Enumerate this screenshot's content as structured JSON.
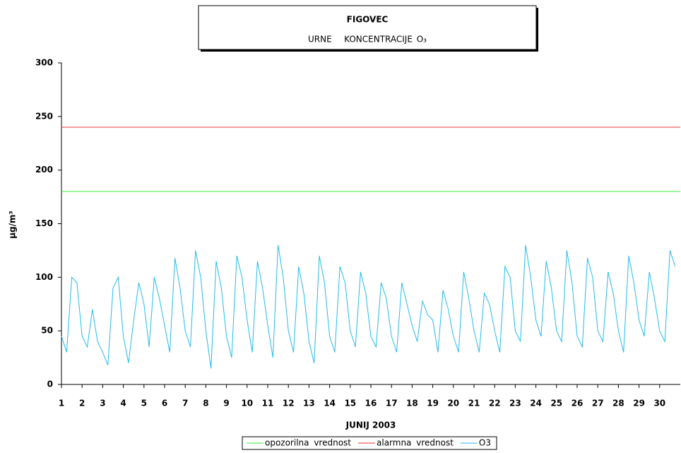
{
  "chart_data": {
    "type": "line",
    "title": "FIGOVEC",
    "subtitle": "URNE   KONCENTRACIJE O₃",
    "y_label": "µg/m³",
    "x_label": "JUNIJ 2003",
    "xlim": [
      1,
      31
    ],
    "xticks": [
      1,
      2,
      3,
      4,
      5,
      6,
      7,
      8,
      9,
      10,
      11,
      12,
      13,
      14,
      15,
      16,
      17,
      18,
      19,
      20,
      21,
      22,
      23,
      24,
      25,
      26,
      27,
      28,
      29,
      30
    ],
    "ylim": [
      0,
      300
    ],
    "yticks": [
      0,
      50,
      100,
      150,
      200,
      250,
      300
    ],
    "series": [
      {
        "name": "opozorilna vrednost",
        "color": "#33ee33",
        "x": [
          1,
          31
        ],
        "values": [
          180,
          180
        ]
      },
      {
        "name": "alarmna vrednost",
        "color": "#ee3333",
        "x": [
          1,
          31
        ],
        "values": [
          240,
          240
        ]
      },
      {
        "name": "O3",
        "color": "#22bbee",
        "x": [
          1,
          1.25,
          1.5,
          1.75,
          2,
          2.25,
          2.5,
          2.75,
          3,
          3.25,
          3.5,
          3.75,
          4,
          4.25,
          4.5,
          4.75,
          5,
          5.25,
          5.5,
          5.75,
          6,
          6.25,
          6.5,
          6.75,
          7,
          7.25,
          7.5,
          7.75,
          8,
          8.25,
          8.5,
          8.75,
          9,
          9.25,
          9.5,
          9.75,
          10,
          10.25,
          10.5,
          10.75,
          11,
          11.25,
          11.5,
          11.75,
          12,
          12.25,
          12.5,
          12.75,
          13,
          13.25,
          13.5,
          13.75,
          14,
          14.25,
          14.5,
          14.75,
          15,
          15.25,
          15.5,
          15.75,
          16,
          16.25,
          16.5,
          16.75,
          17,
          17.25,
          17.5,
          17.75,
          18,
          18.25,
          18.5,
          18.75,
          19,
          19.25,
          19.5,
          19.75,
          20,
          20.25,
          20.5,
          20.75,
          21,
          21.25,
          21.5,
          21.75,
          22,
          22.25,
          22.5,
          22.75,
          23,
          23.25,
          23.5,
          23.75,
          24,
          24.25,
          24.5,
          24.75,
          25,
          25.25,
          25.5,
          25.75,
          26,
          26.25,
          26.5,
          26.75,
          27,
          27.25,
          27.5,
          27.75,
          28,
          28.25,
          28.5,
          28.75,
          29,
          29.25,
          29.5,
          29.75,
          30,
          30.25,
          30.5,
          30.75
        ],
        "values": [
          45,
          30,
          100,
          95,
          45,
          35,
          70,
          40,
          30,
          18,
          90,
          100,
          45,
          20,
          60,
          95,
          75,
          35,
          100,
          80,
          55,
          30,
          118,
          90,
          50,
          35,
          125,
          100,
          50,
          15,
          115,
          90,
          45,
          25,
          120,
          100,
          60,
          30,
          115,
          90,
          55,
          25,
          130,
          100,
          50,
          30,
          110,
          85,
          40,
          20,
          120,
          95,
          45,
          30,
          110,
          95,
          50,
          35,
          105,
          85,
          45,
          35,
          95,
          80,
          45,
          30,
          95,
          75,
          55,
          40,
          78,
          65,
          60,
          30,
          88,
          70,
          45,
          30,
          105,
          80,
          50,
          30,
          85,
          75,
          50,
          30,
          110,
          100,
          50,
          40,
          130,
          100,
          60,
          45,
          115,
          90,
          50,
          40,
          125,
          95,
          45,
          35,
          118,
          100,
          50,
          40,
          105,
          85,
          50,
          30,
          120,
          95,
          60,
          45,
          105,
          80,
          50,
          40,
          125,
          110
        ]
      }
    ]
  }
}
